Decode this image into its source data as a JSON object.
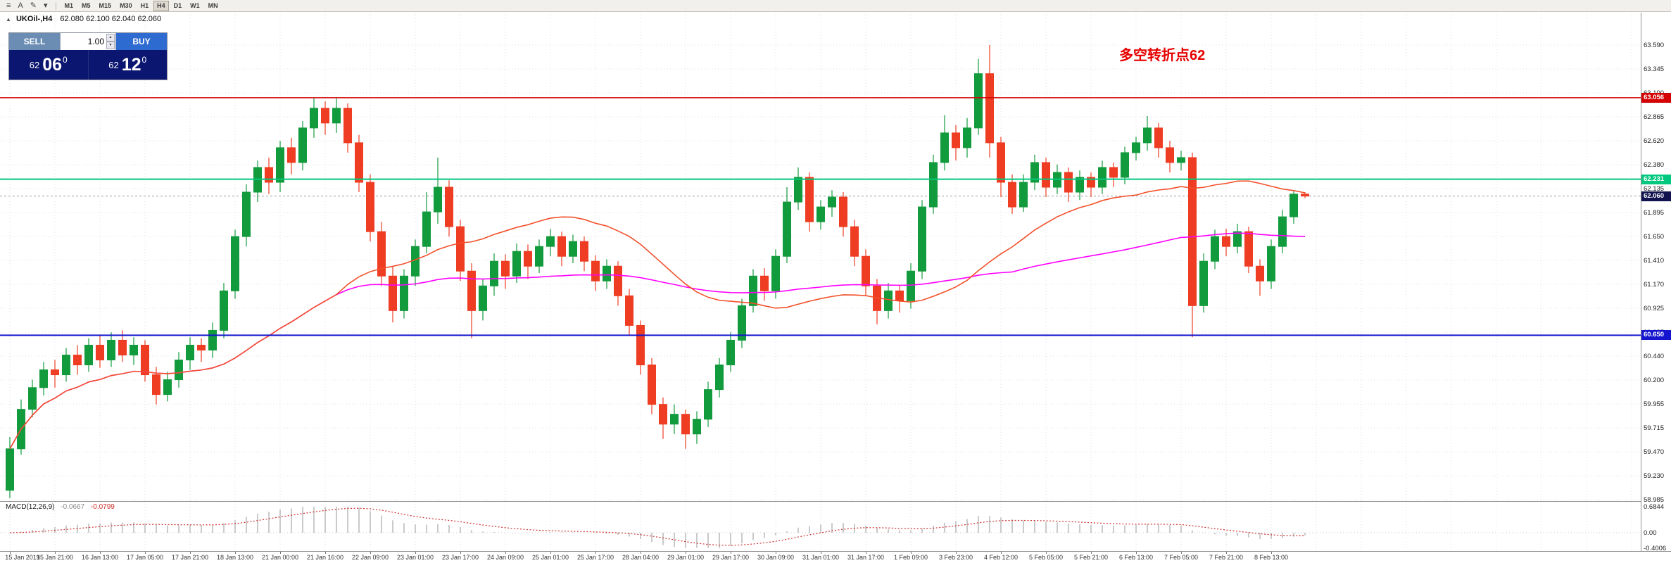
{
  "toolbar": {
    "icons": [
      {
        "name": "menu-icon",
        "glyph": "≡"
      },
      {
        "name": "text-tool-icon",
        "glyph": "A"
      },
      {
        "name": "draw-tools-icon",
        "glyph": "✎"
      },
      {
        "name": "caret-down-icon",
        "glyph": "▾"
      }
    ],
    "timeframes": [
      "M1",
      "M5",
      "M15",
      "M30",
      "H1",
      "H4",
      "D1",
      "W1",
      "MN"
    ],
    "active_timeframe": "H4"
  },
  "chart_header": {
    "collapse_glyph": "▲",
    "symbol": "UKOil-,H4",
    "ohlc": "62.080 62.100 62.040 62.060"
  },
  "trade_panel": {
    "sell_label": "SELL",
    "buy_label": "BUY",
    "lot_value": "1.00",
    "spinner_up": "▲",
    "spinner_down": "▼",
    "sell_color": "#6b8db4",
    "buy_color": "#2e6bd0",
    "panel_bg": "#0b1670",
    "bid": {
      "int": "62",
      "pips": "06",
      "sup": "0"
    },
    "ask": {
      "int": "62",
      "pips": "12",
      "sup": "0"
    }
  },
  "annotation": {
    "text": "多空转折点62",
    "color": "#e60000"
  },
  "macd_label": {
    "name": "MACD(12,26,9)",
    "value_main": "-0.0667",
    "value_signal": "-0.0799"
  },
  "chart_data": {
    "type": "candlestick",
    "symbol": "UKOil-,H4",
    "price_range": [
      58.985,
      63.59
    ],
    "price_axis": [
      "63.590",
      "63.345",
      "63.100",
      "62.865",
      "62.620",
      "62.380",
      "62.135",
      "61.895",
      "61.650",
      "61.410",
      "61.170",
      "60.925",
      "60.685",
      "60.440",
      "60.200",
      "59.955",
      "59.715",
      "59.470",
      "59.230",
      "58.985"
    ],
    "time_axis": [
      "15 Jan 2019",
      "15 Jan 21:00",
      "16 Jan 13:00",
      "17 Jan 05:00",
      "17 Jan 21:00",
      "18 Jan 13:00",
      "21 Jan 00:00",
      "21 Jan 16:00",
      "22 Jan 09:00",
      "23 Jan 01:00",
      "23 Jan 17:00",
      "24 Jan 09:00",
      "25 Jan 01:00",
      "25 Jan 17:00",
      "28 Jan 04:00",
      "29 Jan 01:00",
      "29 Jan 17:00",
      "30 Jan 09:00",
      "31 Jan 01:00",
      "31 Jan 17:00",
      "1 Feb 09:00",
      "3 Feb 23:00",
      "4 Feb 12:00",
      "5 Feb 05:00",
      "5 Feb 21:00",
      "6 Feb 13:00",
      "7 Feb 05:00",
      "7 Feb 21:00",
      "8 Feb 13:00"
    ],
    "bull_color": "#129b3c",
    "bear_color": "#ee3d23",
    "ma_fast": {
      "period": 30,
      "color": "#f2502a"
    },
    "ma_slow": {
      "period": 90,
      "color": "#ff00ff"
    },
    "hlines": [
      {
        "price": 63.056,
        "label": "63.056",
        "color": "#d40000",
        "width": 1.5
      },
      {
        "price": 62.231,
        "label": "62.231",
        "color": "#00c87e",
        "width": 2
      },
      {
        "price": 60.65,
        "label": "60.650",
        "color": "#1515cf",
        "width": 2
      }
    ],
    "current_price": {
      "value": 62.06,
      "label": "62.060",
      "badge_color": "#12124f",
      "line_color": "#9c9c9c"
    },
    "macd": {
      "params": [
        12,
        26,
        9
      ],
      "axis_labels": [
        "0.6844",
        "0.00",
        "-0.4006"
      ],
      "range": [
        -0.4006,
        0.6844
      ],
      "hist_color": "#b9b9b9",
      "signal_color": "#d03030"
    },
    "candles": [
      [
        59.08,
        59.62,
        59.0,
        59.5
      ],
      [
        59.5,
        60.0,
        59.44,
        59.9
      ],
      [
        59.9,
        60.2,
        59.82,
        60.12
      ],
      [
        60.12,
        60.38,
        60.04,
        60.3
      ],
      [
        60.3,
        60.4,
        60.12,
        60.25
      ],
      [
        60.25,
        60.52,
        60.18,
        60.45
      ],
      [
        60.45,
        60.55,
        60.25,
        60.35
      ],
      [
        60.35,
        60.62,
        60.28,
        60.55
      ],
      [
        60.55,
        60.65,
        60.32,
        60.4
      ],
      [
        60.4,
        60.68,
        60.33,
        60.6
      ],
      [
        60.6,
        60.7,
        60.38,
        60.45
      ],
      [
        60.45,
        60.63,
        60.35,
        60.55
      ],
      [
        60.55,
        60.6,
        60.18,
        60.25
      ],
      [
        60.25,
        60.33,
        59.95,
        60.05
      ],
      [
        60.05,
        60.28,
        59.98,
        60.2
      ],
      [
        60.2,
        60.48,
        60.12,
        60.4
      ],
      [
        60.4,
        60.63,
        60.3,
        60.55
      ],
      [
        60.55,
        60.62,
        60.38,
        60.5
      ],
      [
        60.5,
        60.78,
        60.42,
        60.7
      ],
      [
        60.7,
        61.18,
        60.62,
        61.1
      ],
      [
        61.1,
        61.72,
        61.02,
        61.65
      ],
      [
        61.65,
        62.18,
        61.55,
        62.1
      ],
      [
        62.1,
        62.42,
        62.0,
        62.35
      ],
      [
        62.35,
        62.45,
        62.08,
        62.2
      ],
      [
        62.2,
        62.62,
        62.1,
        62.55
      ],
      [
        62.55,
        62.65,
        62.28,
        62.4
      ],
      [
        62.4,
        62.82,
        62.32,
        62.75
      ],
      [
        62.75,
        63.05,
        62.65,
        62.95
      ],
      [
        62.95,
        63.02,
        62.68,
        62.8
      ],
      [
        62.8,
        63.05,
        62.7,
        62.95
      ],
      [
        62.95,
        63.0,
        62.5,
        62.6
      ],
      [
        62.6,
        62.68,
        62.1,
        62.2
      ],
      [
        62.2,
        62.28,
        61.6,
        61.7
      ],
      [
        61.7,
        61.8,
        61.15,
        61.25
      ],
      [
        61.25,
        61.35,
        60.78,
        60.9
      ],
      [
        60.9,
        61.32,
        60.82,
        61.25
      ],
      [
        61.25,
        61.62,
        61.15,
        61.55
      ],
      [
        61.55,
        62.1,
        61.48,
        61.9
      ],
      [
        61.9,
        62.45,
        61.78,
        62.15
      ],
      [
        62.15,
        62.22,
        61.65,
        61.75
      ],
      [
        61.75,
        61.82,
        61.2,
        61.3
      ],
      [
        61.3,
        61.38,
        60.62,
        60.9
      ],
      [
        60.9,
        61.22,
        60.8,
        61.15
      ],
      [
        61.15,
        61.48,
        61.05,
        61.4
      ],
      [
        61.4,
        61.47,
        61.12,
        61.25
      ],
      [
        61.25,
        61.58,
        61.18,
        61.5
      ],
      [
        61.5,
        61.57,
        61.22,
        61.35
      ],
      [
        61.35,
        61.62,
        61.28,
        61.55
      ],
      [
        61.55,
        61.73,
        61.45,
        61.65
      ],
      [
        61.65,
        61.7,
        61.35,
        61.45
      ],
      [
        61.45,
        61.67,
        61.38,
        61.6
      ],
      [
        61.6,
        61.65,
        61.3,
        61.4
      ],
      [
        61.4,
        61.46,
        61.1,
        61.2
      ],
      [
        61.2,
        61.42,
        61.12,
        61.35
      ],
      [
        61.35,
        61.4,
        60.95,
        61.05
      ],
      [
        61.05,
        61.12,
        60.65,
        60.75
      ],
      [
        60.75,
        60.8,
        60.25,
        60.35
      ],
      [
        60.35,
        60.42,
        59.85,
        59.95
      ],
      [
        59.95,
        60.02,
        59.6,
        59.75
      ],
      [
        59.75,
        59.95,
        59.65,
        59.85
      ],
      [
        59.85,
        59.9,
        59.5,
        59.65
      ],
      [
        59.65,
        59.88,
        59.55,
        59.8
      ],
      [
        59.8,
        60.18,
        59.72,
        60.1
      ],
      [
        60.1,
        60.42,
        60.02,
        60.35
      ],
      [
        60.35,
        60.68,
        60.28,
        60.6
      ],
      [
        60.6,
        61.02,
        60.52,
        60.95
      ],
      [
        60.95,
        61.32,
        60.88,
        61.25
      ],
      [
        61.25,
        61.33,
        61.0,
        61.1
      ],
      [
        61.1,
        61.52,
        61.02,
        61.45
      ],
      [
        61.45,
        62.15,
        61.38,
        62.0
      ],
      [
        62.0,
        62.35,
        61.92,
        62.25
      ],
      [
        62.25,
        62.3,
        61.7,
        61.8
      ],
      [
        61.8,
        62.02,
        61.72,
        61.95
      ],
      [
        61.95,
        62.12,
        61.85,
        62.05
      ],
      [
        62.05,
        62.1,
        61.65,
        61.75
      ],
      [
        61.75,
        61.82,
        61.35,
        61.45
      ],
      [
        61.45,
        61.52,
        61.05,
        61.15
      ],
      [
        61.15,
        61.22,
        60.76,
        60.9
      ],
      [
        60.9,
        61.18,
        60.82,
        61.1
      ],
      [
        61.1,
        61.16,
        60.88,
        61.0
      ],
      [
        61.0,
        61.38,
        60.92,
        61.3
      ],
      [
        61.3,
        62.02,
        61.22,
        61.95
      ],
      [
        61.95,
        62.48,
        61.88,
        62.4
      ],
      [
        62.4,
        62.88,
        62.32,
        62.7
      ],
      [
        62.7,
        62.78,
        62.42,
        62.55
      ],
      [
        62.55,
        62.85,
        62.45,
        62.75
      ],
      [
        62.75,
        63.45,
        62.68,
        63.3
      ],
      [
        63.3,
        63.59,
        62.45,
        62.6
      ],
      [
        62.6,
        62.66,
        62.05,
        62.2
      ],
      [
        62.2,
        62.28,
        61.88,
        61.95
      ],
      [
        61.95,
        62.28,
        61.9,
        62.2
      ],
      [
        62.2,
        62.48,
        62.12,
        62.4
      ],
      [
        62.4,
        62.45,
        62.05,
        62.15
      ],
      [
        62.15,
        62.38,
        62.08,
        62.3
      ],
      [
        62.3,
        62.35,
        62.0,
        62.1
      ],
      [
        62.1,
        62.32,
        62.02,
        62.25
      ],
      [
        62.25,
        62.3,
        62.05,
        62.15
      ],
      [
        62.15,
        62.42,
        62.08,
        62.35
      ],
      [
        62.35,
        62.4,
        62.15,
        62.25
      ],
      [
        62.25,
        62.56,
        62.18,
        62.5
      ],
      [
        62.5,
        62.66,
        62.42,
        62.6
      ],
      [
        62.6,
        62.87,
        62.52,
        62.75
      ],
      [
        62.75,
        62.8,
        62.45,
        62.55
      ],
      [
        62.55,
        62.62,
        62.3,
        62.4
      ],
      [
        62.4,
        62.52,
        62.32,
        62.45
      ],
      [
        62.45,
        62.5,
        60.63,
        60.95
      ],
      [
        60.95,
        61.48,
        60.88,
        61.4
      ],
      [
        61.4,
        61.72,
        61.32,
        61.65
      ],
      [
        61.65,
        61.73,
        61.45,
        61.55
      ],
      [
        61.55,
        61.78,
        61.48,
        61.7
      ],
      [
        61.7,
        61.75,
        61.28,
        61.35
      ],
      [
        61.35,
        61.42,
        61.05,
        61.2
      ],
      [
        61.2,
        61.62,
        61.12,
        61.55
      ],
      [
        61.55,
        61.92,
        61.48,
        61.85
      ],
      [
        61.85,
        62.12,
        61.78,
        62.08
      ],
      [
        62.08,
        62.1,
        62.04,
        62.06
      ]
    ]
  }
}
